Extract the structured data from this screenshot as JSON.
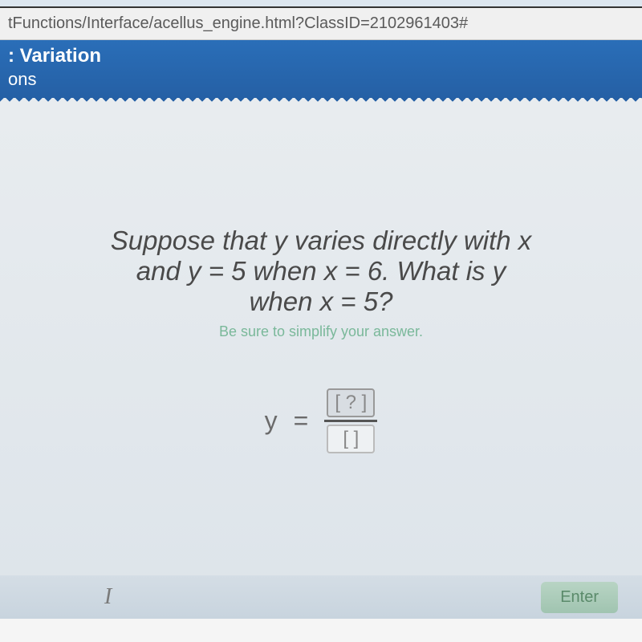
{
  "url_bar": "tFunctions/Interface/acellus_engine.html?ClassID=2102961403#",
  "header": {
    "title": ": Variation",
    "subtitle": "ons"
  },
  "question": {
    "line1": "Suppose that y varies directly with x",
    "line2": "and y = 5 when x = 6. What is y",
    "line3": "when x = 5?",
    "hint": "Be sure to simplify your answer."
  },
  "equation": {
    "lhs_variable": "y",
    "equals": "=",
    "top_placeholder": "[ ? ]",
    "bottom_placeholder": "[   ]"
  },
  "bottom": {
    "cursor": "I",
    "enter_label": "Enter"
  },
  "colors": {
    "header_bg": "#2a6eb8",
    "content_bg": "#e8ecef",
    "hint_color": "#7ab89a",
    "text_color": "#4a4a4a"
  }
}
